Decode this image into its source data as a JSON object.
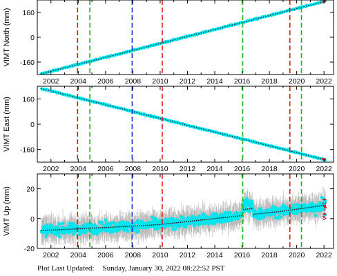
{
  "chart_data": [
    {
      "type": "scatter",
      "ylabel": "VIMT North (mm)",
      "xlim": [
        2001.0,
        2022.7
      ],
      "ylim": [
        -240,
        240
      ],
      "yticks": [
        -160,
        0,
        160
      ],
      "xticks": [
        2002,
        2004,
        2006,
        2008,
        2010,
        2012,
        2014,
        2016,
        2018,
        2020,
        2022
      ],
      "grid": false,
      "series": [
        {
          "values": {
            "x": [
              2001.3,
              2022.1
            ],
            "y": [
              -235,
              232
            ]
          },
          "color": "#00e5ee"
        }
      ],
      "vlines": [
        {
          "x": 2003.95,
          "color": "#dd1111"
        },
        {
          "x": 2004.85,
          "color": "#11bb11"
        },
        {
          "x": 2007.95,
          "color": "#1133dd"
        },
        {
          "x": 2010.15,
          "color": "#dd1111"
        },
        {
          "x": 2016.05,
          "color": "#11bb11"
        },
        {
          "x": 2019.5,
          "color": "#dd1111"
        },
        {
          "x": 2020.35,
          "color": "#11bb11"
        }
      ]
    },
    {
      "type": "scatter",
      "ylabel": "VIMT East (mm)",
      "xlim": [
        2001.0,
        2022.7
      ],
      "ylim": [
        -240,
        240
      ],
      "yticks": [
        -160,
        0,
        160
      ],
      "xticks": [
        2002,
        2004,
        2006,
        2008,
        2010,
        2012,
        2014,
        2016,
        2018,
        2020,
        2022
      ],
      "grid": false,
      "series": [
        {
          "values": {
            "x": [
              2001.3,
              2022.1
            ],
            "y": [
              225,
              -225
            ]
          },
          "color": "#00e5ee"
        }
      ],
      "vlines": [
        {
          "x": 2003.95,
          "color": "#dd1111"
        },
        {
          "x": 2004.85,
          "color": "#11bb11"
        },
        {
          "x": 2007.95,
          "color": "#1133dd"
        },
        {
          "x": 2010.15,
          "color": "#dd1111"
        },
        {
          "x": 2016.05,
          "color": "#11bb11"
        },
        {
          "x": 2019.5,
          "color": "#dd1111"
        },
        {
          "x": 2020.35,
          "color": "#11bb11"
        }
      ]
    },
    {
      "type": "scatter",
      "ylabel": "VIMT Up (mm)",
      "xlim": [
        2001.0,
        2022.7
      ],
      "ylim": [
        -20,
        30
      ],
      "yticks": [
        -20,
        0,
        20
      ],
      "xticks": [
        2002,
        2004,
        2006,
        2008,
        2010,
        2012,
        2014,
        2016,
        2018,
        2020,
        2022
      ],
      "grid": false,
      "series": [
        {
          "values": {
            "x": [
              2001.3,
              2006.0,
              2010.0,
              2016.0,
              2019.0,
              2022.1
            ],
            "y": [
              -8,
              -6,
              -4,
              2,
              5,
              9
            ]
          },
          "color": "#00e5ee"
        }
      ],
      "vlines": [
        {
          "x": 2003.95,
          "color": "#dd1111"
        },
        {
          "x": 2004.85,
          "color": "#11bb11"
        },
        {
          "x": 2007.95,
          "color": "#1133dd"
        },
        {
          "x": 2010.15,
          "color": "#dd1111"
        },
        {
          "x": 2016.05,
          "color": "#11bb11"
        },
        {
          "x": 2019.5,
          "color": "#dd1111"
        },
        {
          "x": 2020.35,
          "color": "#11bb11"
        }
      ]
    }
  ],
  "footer": {
    "label": "Plot Last Updated:",
    "value": "Sunday, January 30, 2022 08:22:52 PST"
  },
  "colors": {
    "model_line": "#222222",
    "error_bars": "#b8b8b8",
    "recent_points": "#ee1111"
  }
}
